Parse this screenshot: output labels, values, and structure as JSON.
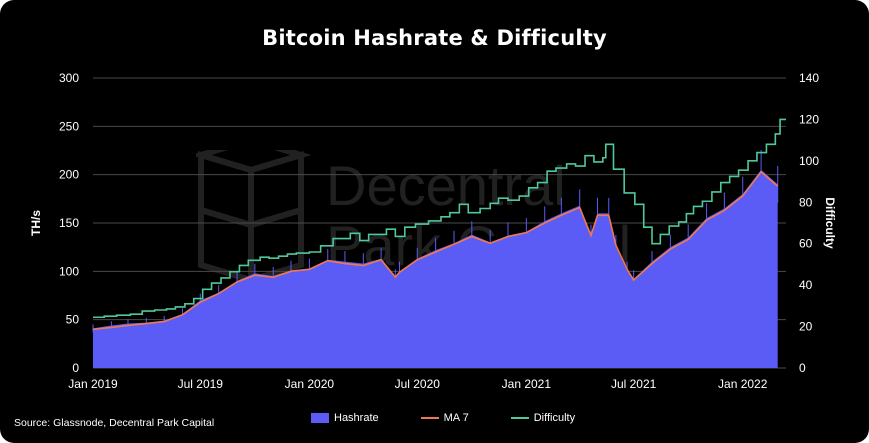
{
  "title": "Bitcoin Hashrate & Difficulty",
  "source": "Source: Glassnode, Decentral Park Capital",
  "watermark": {
    "line1": "Decentral",
    "line2": "Park Capital"
  },
  "colors": {
    "hashrate": "#5a5cf5",
    "ma7": "#f07850",
    "difficulty": "#4fc99a",
    "grid": "#4a4a4a",
    "background": "#000000"
  },
  "legend": [
    {
      "label": "Hashrate",
      "key": "hashrate"
    },
    {
      "label": "MA 7",
      "key": "ma7"
    },
    {
      "label": "Difficulty",
      "key": "difficulty"
    }
  ],
  "chart_data": {
    "type": "area",
    "title": "Bitcoin Hashrate & Difficulty",
    "ylabel": "TH/s",
    "y2label": "Difficulty",
    "ylim": [
      0,
      300
    ],
    "y2lim": [
      0,
      140
    ],
    "yticks": [
      0,
      50,
      100,
      150,
      200,
      250,
      300
    ],
    "y2ticks": [
      0,
      20,
      40,
      60,
      80,
      100,
      120,
      140
    ],
    "xlim": [
      "2019-01-01",
      "2022-03-15"
    ],
    "xticks": [
      {
        "date": "2019-01-01",
        "label": "Jan 2019"
      },
      {
        "date": "2019-07-01",
        "label": "Jul 2019"
      },
      {
        "date": "2020-01-01",
        "label": "Jan 2020"
      },
      {
        "date": "2020-07-01",
        "label": "Jul 2020"
      },
      {
        "date": "2021-01-01",
        "label": "Jan 2021"
      },
      {
        "date": "2021-07-01",
        "label": "Jul 2021"
      },
      {
        "date": "2022-01-01",
        "label": "Jan 2022"
      }
    ],
    "grid": true,
    "legend_position": "bottom",
    "series": [
      {
        "name": "Hashrate",
        "axis": "left",
        "style": "area",
        "x": [
          "2019-01-01",
          "2019-02-01",
          "2019-03-01",
          "2019-04-01",
          "2019-05-01",
          "2019-06-01",
          "2019-07-01",
          "2019-08-01",
          "2019-09-01",
          "2019-10-01",
          "2019-11-01",
          "2019-12-01",
          "2020-01-01",
          "2020-02-01",
          "2020-03-01",
          "2020-04-01",
          "2020-05-01",
          "2020-05-25",
          "2020-06-01",
          "2020-07-01",
          "2020-08-01",
          "2020-09-01",
          "2020-10-01",
          "2020-11-01",
          "2020-12-01",
          "2021-01-01",
          "2021-02-01",
          "2021-03-01",
          "2021-04-01",
          "2021-04-20",
          "2021-05-01",
          "2021-05-20",
          "2021-06-01",
          "2021-06-20",
          "2021-07-01",
          "2021-08-01",
          "2021-09-01",
          "2021-10-01",
          "2021-11-01",
          "2021-12-01",
          "2022-01-01",
          "2022-02-01",
          "2022-03-01"
        ],
        "values": [
          41,
          44,
          46,
          47,
          49,
          56,
          70,
          78,
          90,
          98,
          95,
          101,
          103,
          112,
          110,
          108,
          113,
          93,
          100,
          113,
          122,
          129,
          138,
          130,
          137,
          141,
          152,
          160,
          168,
          135,
          160,
          160,
          125,
          100,
          92,
          110,
          125,
          135,
          155,
          165,
          180,
          205,
          190
        ]
      },
      {
        "name": "MA 7",
        "axis": "left",
        "style": "line",
        "x": [
          "2019-01-01",
          "2019-02-01",
          "2019-03-01",
          "2019-04-01",
          "2019-05-01",
          "2019-06-01",
          "2019-07-01",
          "2019-08-01",
          "2019-09-01",
          "2019-10-01",
          "2019-11-01",
          "2019-12-01",
          "2020-01-01",
          "2020-02-01",
          "2020-03-01",
          "2020-04-01",
          "2020-05-01",
          "2020-05-25",
          "2020-06-01",
          "2020-07-01",
          "2020-08-01",
          "2020-09-01",
          "2020-10-01",
          "2020-11-01",
          "2020-12-01",
          "2021-01-01",
          "2021-02-01",
          "2021-03-01",
          "2021-04-01",
          "2021-04-20",
          "2021-05-01",
          "2021-05-20",
          "2021-06-01",
          "2021-06-20",
          "2021-07-01",
          "2021-08-01",
          "2021-09-01",
          "2021-10-01",
          "2021-11-01",
          "2021-12-01",
          "2022-01-01",
          "2022-02-01",
          "2022-03-01"
        ],
        "values": [
          40,
          42,
          44,
          46,
          48,
          55,
          68,
          77,
          89,
          96,
          94,
          100,
          102,
          111,
          108,
          106,
          112,
          94,
          99,
          112,
          120,
          128,
          136,
          129,
          136,
          140,
          150,
          158,
          166,
          137,
          158,
          158,
          127,
          102,
          91,
          108,
          123,
          133,
          153,
          163,
          178,
          203,
          188
        ]
      },
      {
        "name": "Difficulty",
        "axis": "right",
        "style": "step",
        "x": [
          "2019-01-01",
          "2019-01-20",
          "2019-02-10",
          "2019-03-05",
          "2019-03-25",
          "2019-04-15",
          "2019-05-05",
          "2019-05-20",
          "2019-06-05",
          "2019-06-20",
          "2019-07-05",
          "2019-07-20",
          "2019-08-05",
          "2019-08-20",
          "2019-09-05",
          "2019-09-20",
          "2019-10-10",
          "2019-10-25",
          "2019-11-10",
          "2019-11-25",
          "2019-12-10",
          "2020-01-01",
          "2020-01-20",
          "2020-02-10",
          "2020-03-10",
          "2020-03-26",
          "2020-04-10",
          "2020-05-10",
          "2020-05-25",
          "2020-06-10",
          "2020-06-28",
          "2020-07-20",
          "2020-08-10",
          "2020-08-25",
          "2020-09-10",
          "2020-09-25",
          "2020-10-15",
          "2020-11-01",
          "2020-11-15",
          "2020-12-01",
          "2020-12-20",
          "2021-01-05",
          "2021-01-20",
          "2021-02-05",
          "2021-02-20",
          "2021-03-10",
          "2021-03-25",
          "2021-04-10",
          "2021-04-25",
          "2021-05-10",
          "2021-05-15",
          "2021-05-28",
          "2021-06-15",
          "2021-07-03",
          "2021-07-18",
          "2021-08-01",
          "2021-08-15",
          "2021-08-30",
          "2021-09-15",
          "2021-09-28",
          "2021-10-10",
          "2021-10-25",
          "2021-11-10",
          "2021-11-25",
          "2021-12-10",
          "2021-12-25",
          "2022-01-10",
          "2022-01-25",
          "2022-02-10",
          "2022-02-25",
          "2022-03-05"
        ],
        "values": [
          24.5,
          25.0,
          25.5,
          26.0,
          27.5,
          28.0,
          28.5,
          29.5,
          31.0,
          33.5,
          38.0,
          41.0,
          43.5,
          46.5,
          49.5,
          52.0,
          53.5,
          53.0,
          54.0,
          55.0,
          55.5,
          56.0,
          59.0,
          62.5,
          65.0,
          61.5,
          64.5,
          67.0,
          63.5,
          68.0,
          69.5,
          71.0,
          73.0,
          75.0,
          79.0,
          75.0,
          77.0,
          79.5,
          82.0,
          81.0,
          83.0,
          87.0,
          89.5,
          95.0,
          96.5,
          98.5,
          97.5,
          102.5,
          99.5,
          101.5,
          108.0,
          96.0,
          84.5,
          79.0,
          68.0,
          60.0,
          64.5,
          68.5,
          70.5,
          74.5,
          78.0,
          80.5,
          85.0,
          89.5,
          92.5,
          95.5,
          100.0,
          104.0,
          108.0,
          113.0,
          120.0
        ]
      }
    ]
  }
}
